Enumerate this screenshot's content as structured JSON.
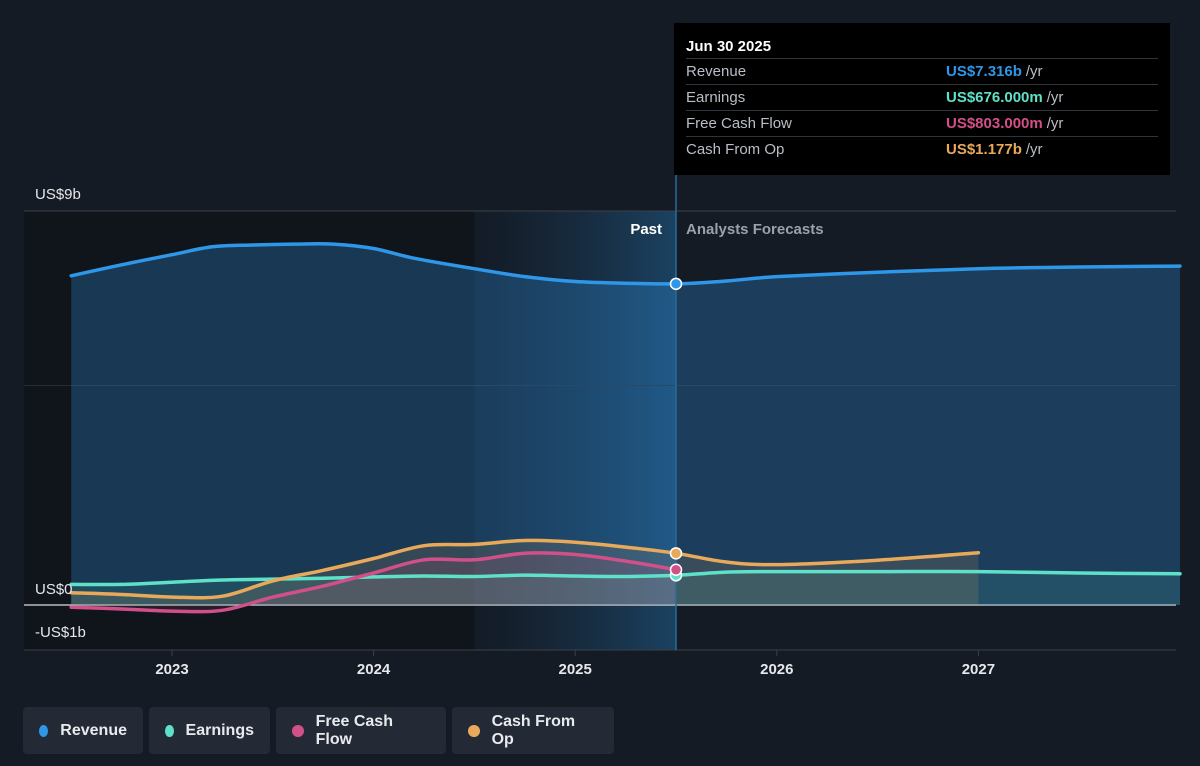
{
  "chart_data": {
    "type": "line",
    "y_axis": {
      "top_label": "US$9b",
      "zero_label": "US$0",
      "bottom_label": "-US$1b",
      "ylim": [
        -1,
        9
      ]
    },
    "x_ticks": [
      "2023",
      "2024",
      "2025",
      "2026",
      "2027"
    ],
    "regions": {
      "past_label": "Past",
      "forecast_label": "Analysts Forecasts"
    },
    "series": [
      {
        "name": "Revenue",
        "color": "#2f97e8",
        "points": [
          [
            2022.5,
            7.5
          ],
          [
            2022.75,
            7.75
          ],
          [
            2023.0,
            7.98
          ],
          [
            2023.2,
            8.16
          ],
          [
            2023.4,
            8.2
          ],
          [
            2023.6,
            8.22
          ],
          [
            2023.8,
            8.22
          ],
          [
            2024.0,
            8.12
          ],
          [
            2024.2,
            7.9
          ],
          [
            2024.5,
            7.66
          ],
          [
            2024.75,
            7.48
          ],
          [
            2025.0,
            7.37
          ],
          [
            2025.25,
            7.33
          ],
          [
            2025.5,
            7.316
          ],
          [
            2025.75,
            7.38
          ],
          [
            2026.0,
            7.48
          ],
          [
            2026.5,
            7.58
          ],
          [
            2027.0,
            7.66
          ],
          [
            2027.5,
            7.7
          ],
          [
            2028.0,
            7.72
          ]
        ]
      },
      {
        "name": "Earnings",
        "color": "#5ee1c8",
        "points": [
          [
            2022.5,
            0.47
          ],
          [
            2022.75,
            0.47
          ],
          [
            2023.0,
            0.52
          ],
          [
            2023.25,
            0.57
          ],
          [
            2023.5,
            0.59
          ],
          [
            2023.75,
            0.61
          ],
          [
            2024.0,
            0.64
          ],
          [
            2024.25,
            0.66
          ],
          [
            2024.5,
            0.65
          ],
          [
            2024.75,
            0.68
          ],
          [
            2025.0,
            0.66
          ],
          [
            2025.25,
            0.65
          ],
          [
            2025.5,
            0.676
          ],
          [
            2025.75,
            0.75
          ],
          [
            2026.0,
            0.76
          ],
          [
            2026.5,
            0.76
          ],
          [
            2027.0,
            0.76
          ],
          [
            2027.5,
            0.73
          ],
          [
            2028.0,
            0.71
          ]
        ]
      },
      {
        "name": "Free Cash Flow",
        "color": "#d2508a",
        "points": [
          [
            2022.5,
            -0.05
          ],
          [
            2022.75,
            -0.09
          ],
          [
            2023.0,
            -0.14
          ],
          [
            2023.25,
            -0.12
          ],
          [
            2023.5,
            0.18
          ],
          [
            2023.75,
            0.43
          ],
          [
            2024.0,
            0.73
          ],
          [
            2024.25,
            1.03
          ],
          [
            2024.5,
            1.03
          ],
          [
            2024.75,
            1.18
          ],
          [
            2025.0,
            1.15
          ],
          [
            2025.25,
            1.0
          ],
          [
            2025.5,
            0.803
          ]
        ]
      },
      {
        "name": "Cash From Op",
        "color": "#e8a95a",
        "points": [
          [
            2022.5,
            0.28
          ],
          [
            2022.75,
            0.24
          ],
          [
            2023.0,
            0.18
          ],
          [
            2023.25,
            0.2
          ],
          [
            2023.5,
            0.55
          ],
          [
            2023.75,
            0.79
          ],
          [
            2024.0,
            1.06
          ],
          [
            2024.25,
            1.35
          ],
          [
            2024.5,
            1.38
          ],
          [
            2024.75,
            1.47
          ],
          [
            2025.0,
            1.43
          ],
          [
            2025.25,
            1.32
          ],
          [
            2025.5,
            1.177
          ],
          [
            2025.75,
            0.98
          ],
          [
            2026.0,
            0.92
          ],
          [
            2026.5,
            1.02
          ],
          [
            2027.0,
            1.19
          ]
        ]
      }
    ],
    "tooltip": {
      "date": "Jun 30 2025",
      "rows": [
        {
          "name": "Revenue",
          "value": "US$7.316b",
          "unit": "/yr",
          "color": "#2f97e8"
        },
        {
          "name": "Earnings",
          "value": "US$676.000m",
          "unit": "/yr",
          "color": "#5ee1c8"
        },
        {
          "name": "Free Cash Flow",
          "value": "US$803.000m",
          "unit": "/yr",
          "color": "#d2508a"
        },
        {
          "name": "Cash From Op",
          "value": "US$1.177b",
          "unit": "/yr",
          "color": "#e8a95a"
        }
      ]
    },
    "legend": [
      {
        "name": "Revenue",
        "color": "#2f97e8"
      },
      {
        "name": "Earnings",
        "color": "#5ee1c8"
      },
      {
        "name": "Free Cash Flow",
        "color": "#d2508a"
      },
      {
        "name": "Cash From Op",
        "color": "#e8a95a"
      }
    ]
  }
}
